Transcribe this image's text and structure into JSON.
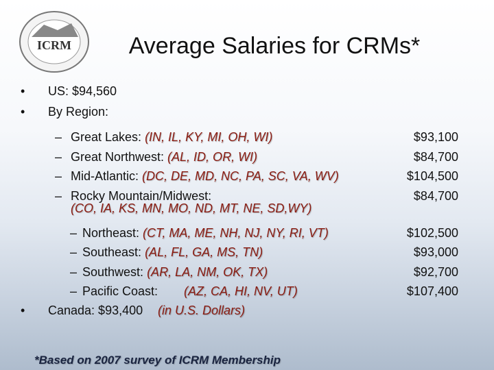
{
  "title": "Average Salaries for CRMs*",
  "logo": {
    "text": "ICRM"
  },
  "bullets": [
    {
      "text": "US: $94,560"
    },
    {
      "text": "By Region:"
    }
  ],
  "regions": [
    {
      "name": "Great Lakes:",
      "states": "(IN, IL, KY, MI, OH, WI)",
      "salary": "$93,100"
    },
    {
      "name": "Great Northwest:",
      "states": "(AL, ID, OR, WI)",
      "salary": "$84,700"
    },
    {
      "name": "Mid-Atlantic:",
      "states": "(DC, DE, MD, NC, PA, SC, VA, WV)",
      "salary": "$104,500"
    },
    {
      "name": "Rocky Mountain/Midwest:",
      "states": "(CO, IA, KS, MN, MO, ND, MT, NE, SD,WY)",
      "salary": "$84,700"
    },
    {
      "name": "Northeast:",
      "states": "(CT, MA, ME, NH, NJ, NY, RI, VT)",
      "salary": "$102,500"
    },
    {
      "name": "Southeast:",
      "states": "(AL, FL, GA, MS, TN)",
      "salary": "$93,000"
    },
    {
      "name": "Southwest:",
      "states": "(AR, LA, NM, OK, TX)",
      "salary": "$92,700"
    },
    {
      "name": "Pacific Coast:",
      "states": "(AZ, CA, HI, NV, UT)",
      "salary": "$107,400"
    }
  ],
  "canada": {
    "text": "Canada: $93,400",
    "note": "(in U.S. Dollars)"
  },
  "footnote": "*Based on 2007 survey of ICRM Membership"
}
